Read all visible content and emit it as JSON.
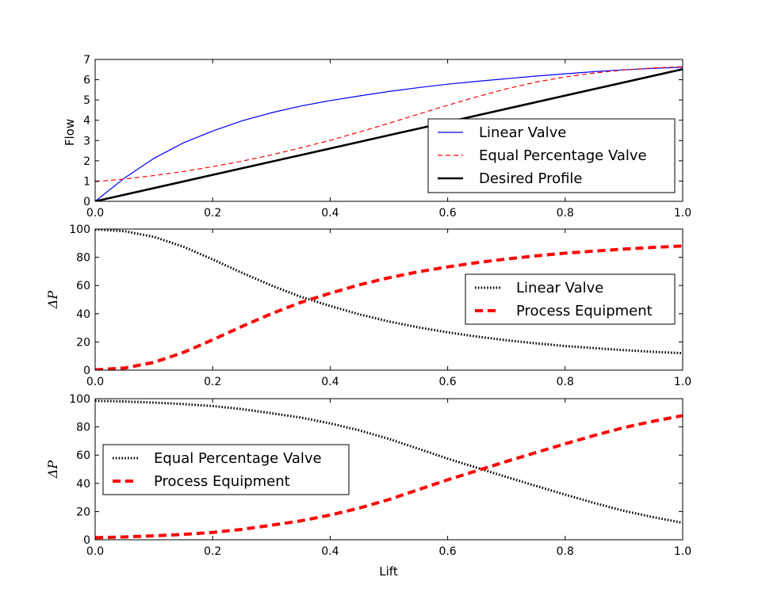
{
  "chart_data": [
    {
      "type": "line",
      "xlabel": "",
      "ylabel": "Flow",
      "xlim": [
        0,
        1
      ],
      "ylim": [
        0,
        7
      ],
      "xticks": [
        "0.0",
        "0.2",
        "0.4",
        "0.6",
        "0.8",
        "1.0"
      ],
      "yticks": [
        "0",
        "1",
        "2",
        "3",
        "4",
        "5",
        "6",
        "7"
      ],
      "legend_placement": "lower-right",
      "series": [
        {
          "name": "Linear Valve",
          "color": "#0000ff",
          "style": "solid",
          "x": [
            0,
            0.05,
            0.1,
            0.15,
            0.2,
            0.25,
            0.3,
            0.35,
            0.4,
            0.45,
            0.5,
            0.55,
            0.6,
            0.65,
            0.7,
            0.75,
            0.8,
            0.85,
            0.9,
            0.95,
            1.0
          ],
          "y": [
            0,
            1.15,
            2.12,
            2.88,
            3.47,
            3.97,
            4.37,
            4.7,
            4.97,
            5.2,
            5.42,
            5.61,
            5.78,
            5.92,
            6.05,
            6.18,
            6.29,
            6.4,
            6.49,
            6.56,
            6.62
          ]
        },
        {
          "name": "Equal Percentage Valve",
          "color": "#ff0000",
          "style": "dashed",
          "x": [
            0,
            0.05,
            0.1,
            0.15,
            0.2,
            0.25,
            0.3,
            0.35,
            0.4,
            0.45,
            0.5,
            0.55,
            0.6,
            0.65,
            0.7,
            0.75,
            0.8,
            0.85,
            0.9,
            0.95,
            1.0
          ],
          "y": [
            0.97,
            1.1,
            1.27,
            1.47,
            1.71,
            1.98,
            2.29,
            2.64,
            3.01,
            3.42,
            3.85,
            4.3,
            4.74,
            5.16,
            5.55,
            5.88,
            6.14,
            6.33,
            6.48,
            6.58,
            6.64
          ]
        },
        {
          "name": "Desired Profile",
          "color": "#000000",
          "style": "solid-thick",
          "x": [
            0,
            1.0
          ],
          "y": [
            0,
            6.52
          ]
        }
      ]
    },
    {
      "type": "line",
      "xlabel": "",
      "ylabel": "ΔP",
      "xlim": [
        0,
        1
      ],
      "ylim": [
        0,
        100
      ],
      "xticks": [
        "0.0",
        "0.2",
        "0.4",
        "0.6",
        "0.8",
        "1.0"
      ],
      "yticks": [
        "0",
        "20",
        "40",
        "60",
        "80",
        "100"
      ],
      "legend_placement": "center-right",
      "series": [
        {
          "name": "Linear Valve",
          "color": "#000000",
          "style": "dotted",
          "x": [
            0,
            0.05,
            0.1,
            0.15,
            0.2,
            0.25,
            0.3,
            0.35,
            0.4,
            0.45,
            0.5,
            0.55,
            0.6,
            0.65,
            0.7,
            0.75,
            0.8,
            0.85,
            0.9,
            0.95,
            1.0
          ],
          "y": [
            99.8,
            98.5,
            94.5,
            87.5,
            78.5,
            69,
            60,
            52,
            45.5,
            39.5,
            34.5,
            30.3,
            26.8,
            23.8,
            21.2,
            19,
            17.1,
            15.6,
            14.2,
            13,
            12
          ]
        },
        {
          "name": "Process Equipment",
          "color": "#ff0000",
          "style": "dashed-thick",
          "x": [
            0,
            0.05,
            0.1,
            0.15,
            0.2,
            0.25,
            0.3,
            0.35,
            0.4,
            0.45,
            0.5,
            0.55,
            0.6,
            0.65,
            0.7,
            0.75,
            0.8,
            0.85,
            0.9,
            0.95,
            1.0
          ],
          "y": [
            0.2,
            1.5,
            5.5,
            12.5,
            21.5,
            31,
            40,
            48,
            54.5,
            60.5,
            65.5,
            69.7,
            73.2,
            76.2,
            78.8,
            81,
            82.9,
            84.4,
            85.8,
            87,
            88
          ]
        }
      ]
    },
    {
      "type": "line",
      "xlabel": "Lift",
      "ylabel": "ΔP",
      "xlim": [
        0,
        1
      ],
      "ylim": [
        0,
        100
      ],
      "xticks": [
        "0.0",
        "0.2",
        "0.4",
        "0.6",
        "0.8",
        "1.0"
      ],
      "yticks": [
        "0",
        "20",
        "40",
        "60",
        "80",
        "100"
      ],
      "legend_placement": "center-left",
      "series": [
        {
          "name": "Equal Percentage Valve",
          "color": "#000000",
          "style": "dotted",
          "x": [
            0,
            0.05,
            0.1,
            0.15,
            0.2,
            0.25,
            0.3,
            0.35,
            0.4,
            0.45,
            0.5,
            0.55,
            0.6,
            0.65,
            0.7,
            0.75,
            0.8,
            0.85,
            0.9,
            0.95,
            1.0
          ],
          "y": [
            98.5,
            98,
            97.2,
            96.2,
            94.8,
            92.6,
            89.7,
            86.6,
            82.5,
            77.5,
            71.5,
            64.5,
            57.5,
            51,
            44.5,
            38.2,
            32,
            26,
            20.5,
            16,
            12
          ]
        },
        {
          "name": "Process Equipment",
          "color": "#ff0000",
          "style": "dashed-thick",
          "x": [
            0,
            0.05,
            0.1,
            0.15,
            0.2,
            0.25,
            0.3,
            0.35,
            0.4,
            0.45,
            0.5,
            0.55,
            0.6,
            0.65,
            0.7,
            0.75,
            0.8,
            0.85,
            0.9,
            0.95,
            1.0
          ],
          "y": [
            1.5,
            2,
            2.8,
            3.8,
            5.2,
            7.4,
            10.3,
            13.4,
            17.5,
            22.5,
            28.5,
            35.5,
            42.5,
            49,
            55.5,
            61.8,
            68,
            74,
            79.5,
            84,
            88
          ]
        }
      ]
    }
  ]
}
